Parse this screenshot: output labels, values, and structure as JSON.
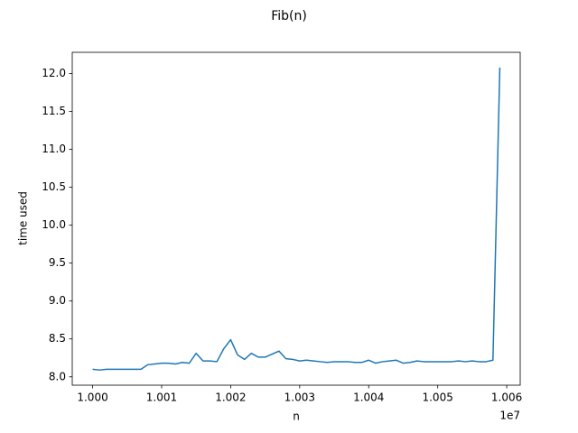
{
  "chart_data": {
    "type": "line",
    "title": "Fib(n)",
    "x_label": "n",
    "y_label": "time used",
    "x_offset_label": "1e7",
    "x": [
      10000000,
      10001000,
      10002000,
      10003000,
      10004000,
      10005000,
      10006000,
      10007000,
      10008000,
      10009000,
      10010000,
      10011000,
      10012000,
      10013000,
      10014000,
      10015000,
      10016000,
      10017000,
      10018000,
      10019000,
      10020000,
      10021000,
      10022000,
      10023000,
      10024000,
      10025000,
      10026000,
      10027000,
      10028000,
      10029000,
      10030000,
      10031000,
      10032000,
      10033000,
      10034000,
      10035000,
      10036000,
      10037000,
      10038000,
      10039000,
      10040000,
      10041000,
      10042000,
      10043000,
      10044000,
      10045000,
      10046000,
      10047000,
      10048000,
      10049000,
      10050000,
      10051000,
      10052000,
      10053000,
      10054000,
      10055000,
      10056000,
      10057000,
      10058000,
      10059000
    ],
    "values": [
      8.1,
      8.09,
      8.1,
      8.1,
      8.1,
      8.1,
      8.1,
      8.1,
      8.16,
      8.17,
      8.18,
      8.18,
      8.17,
      8.19,
      8.18,
      8.31,
      8.21,
      8.21,
      8.2,
      8.37,
      8.49,
      8.29,
      8.23,
      8.31,
      8.26,
      8.26,
      8.3,
      8.34,
      8.24,
      8.23,
      8.21,
      8.22,
      8.21,
      8.2,
      8.19,
      8.2,
      8.2,
      8.2,
      8.19,
      8.19,
      8.22,
      8.18,
      8.2,
      8.21,
      8.22,
      8.18,
      8.19,
      8.21,
      8.2,
      8.2,
      8.2,
      8.2,
      8.2,
      8.21,
      8.2,
      8.21,
      8.2,
      8.2,
      8.22,
      12.08
    ],
    "color": "#1f77b4",
    "xlim": [
      9997050,
      10061950
    ],
    "xticks": [
      {
        "value": 10000000,
        "label": "1.000"
      },
      {
        "value": 10010000,
        "label": "1.001"
      },
      {
        "value": 10020000,
        "label": "1.002"
      },
      {
        "value": 10030000,
        "label": "1.003"
      },
      {
        "value": 10040000,
        "label": "1.004"
      },
      {
        "value": 10050000,
        "label": "1.005"
      },
      {
        "value": 10060000,
        "label": "1.006"
      }
    ],
    "ylim": [
      7.89,
      12.28
    ],
    "yticks": [
      {
        "value": 8,
        "label": "8.0"
      },
      8.5,
      {
        "value": 9,
        "label": "9.0"
      },
      9.5,
      {
        "value": 10,
        "label": "10.0"
      },
      10.5,
      {
        "value": 11,
        "label": "11.0"
      },
      11.5,
      {
        "value": 12,
        "label": "12.0"
      }
    ],
    "grid": false
  }
}
